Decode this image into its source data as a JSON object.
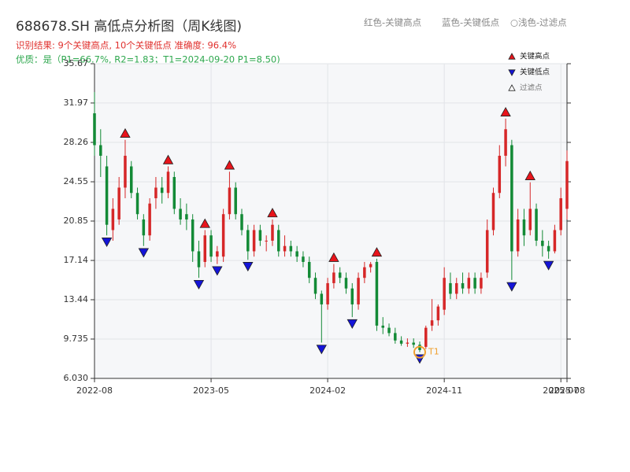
{
  "chart_data": {
    "type": "candlestick",
    "title": "688678.SH 高低点分析图（周K线图)",
    "subtitle": "识别结果: 9个关键高点, 10个关键低点  准确度: 96.4%",
    "quality_note": "优质：是（P1=66.7%, R2=1.83；T1=2024-09-20 P1=8.50)",
    "top_legend": [
      "红色-关键高点",
      "蓝色-关键低点",
      "○浅色-过滤点"
    ],
    "up_color": "#d62728",
    "down_color": "#138a36",
    "grid": true,
    "xlim": [
      0,
      77
    ],
    "xticks": [
      {
        "value": 0,
        "label": "2022-08"
      },
      {
        "value": 19,
        "label": "2023-05"
      },
      {
        "value": 38,
        "label": "2024-02"
      },
      {
        "value": 57,
        "label": "2024-11"
      },
      {
        "value": 76,
        "label": "2025-07"
      },
      {
        "value": 77,
        "label": "2025-08"
      }
    ],
    "ylim": [
      6.03,
      35.67
    ],
    "yticks": [
      {
        "value": 6.03,
        "label": "6.030"
      },
      9.735,
      13.44,
      17.14,
      20.85,
      24.55,
      28.26,
      31.97,
      35.67
    ],
    "open": [
      31,
      28,
      26,
      20,
      21,
      24,
      26,
      23.5,
      21,
      19.5,
      23,
      24,
      23.5,
      25,
      22,
      21.5,
      21,
      18,
      17,
      19.5,
      17.5,
      17.5,
      21.5,
      24,
      21.5,
      20,
      18,
      20,
      19,
      19,
      20,
      18,
      18.5,
      18,
      17.5,
      17,
      15.5,
      14,
      13,
      15,
      16,
      15.5,
      14.5,
      13,
      15.5,
      16.5,
      17,
      11,
      10.8,
      10.3,
      9.6,
      9.3,
      9.4,
      9.2,
      9,
      11,
      11.5,
      12.5,
      15,
      14,
      15,
      14.5,
      15.5,
      14.5,
      16,
      20,
      23.5,
      27,
      28,
      18,
      21,
      20,
      22,
      19,
      18.5,
      18,
      20,
      22
    ],
    "high": [
      33,
      29.5,
      27,
      23,
      25,
      28.5,
      26.5,
      24,
      21.5,
      23,
      25,
      25,
      26,
      25.5,
      23,
      22.5,
      21.5,
      19,
      20,
      20,
      18.5,
      22,
      25.5,
      24.5,
      22,
      20.5,
      20.5,
      20.5,
      19.5,
      21,
      20.5,
      19.5,
      19,
      18.5,
      18,
      17.5,
      16,
      14.3,
      15.5,
      16.8,
      16.5,
      16,
      15,
      16,
      17,
      17,
      17.3,
      11.8,
      11.2,
      10.8,
      10,
      9.8,
      9.8,
      9.5,
      11,
      13.5,
      13,
      16.5,
      16,
      15.5,
      16,
      16,
      16,
      16,
      21,
      24,
      28,
      30.5,
      28.5,
      22,
      22,
      24.5,
      22.5,
      20,
      19,
      20.5,
      24,
      27.5
    ],
    "low": [
      27,
      25,
      19.5,
      19,
      20.5,
      23,
      23,
      21,
      18.5,
      19,
      22,
      22.5,
      23,
      21.5,
      20.5,
      20,
      17,
      15.5,
      16.5,
      17,
      16.8,
      17,
      21,
      21,
      19.5,
      17.2,
      17.5,
      18.5,
      18,
      18.5,
      17.5,
      17.5,
      17.5,
      17,
      16.5,
      15,
      13.5,
      9.4,
      12.5,
      14.5,
      15,
      14,
      11.8,
      12.5,
      15,
      16,
      10.5,
      10.2,
      10,
      9.3,
      9.1,
      9,
      8.9,
      8.5,
      8.8,
      10.5,
      11,
      12,
      13.5,
      13.5,
      14,
      14,
      14,
      14,
      15.5,
      19.5,
      23,
      26,
      15.3,
      17.5,
      18.5,
      19.5,
      18.5,
      17.5,
      17.3,
      17.8,
      19.5,
      21
    ],
    "close": [
      28,
      27,
      20.5,
      22,
      24,
      27,
      23.5,
      21.5,
      19.5,
      22.5,
      24,
      23.5,
      25.5,
      22,
      21,
      21,
      18,
      16.5,
      19.5,
      17.5,
      18,
      21.5,
      24,
      21.5,
      20,
      18,
      20,
      19,
      19,
      20.5,
      18,
      18.5,
      18,
      17.5,
      17,
      15.5,
      14,
      13,
      15,
      16,
      15.5,
      14.5,
      13,
      15.5,
      16.5,
      16.8,
      11,
      10.8,
      10.3,
      9.6,
      9.3,
      9.4,
      9.2,
      8.7,
      10.8,
      11.5,
      12.8,
      15.5,
      14,
      15,
      14.5,
      15.5,
      14.5,
      15.5,
      20,
      23.5,
      27,
      29.5,
      18,
      21,
      19.5,
      22,
      19,
      18.5,
      18,
      20,
      23,
      26.5
    ],
    "series": [
      {
        "name": "关键高点",
        "color": "#e8141b",
        "marker": "up",
        "x": [
          5,
          12,
          18,
          22,
          29,
          39,
          46,
          67,
          71
        ],
        "values": [
          28.5,
          26,
          20,
          25.5,
          21,
          16.8,
          17.3,
          30.5,
          24.5
        ]
      },
      {
        "name": "关键低点",
        "color": "#1414d8",
        "marker": "down",
        "x": [
          2,
          8,
          17,
          20,
          25,
          37,
          42,
          53,
          68,
          74
        ],
        "values": [
          19.5,
          18.5,
          15.5,
          16.8,
          17.2,
          9.4,
          11.8,
          8.5,
          15.3,
          17.3
        ]
      },
      {
        "name": "过滤点",
        "color": "#ffffff",
        "marker": "up",
        "x": [],
        "values": []
      }
    ],
    "annotation": {
      "text": "T1",
      "x": 53,
      "y": 8.5
    }
  }
}
